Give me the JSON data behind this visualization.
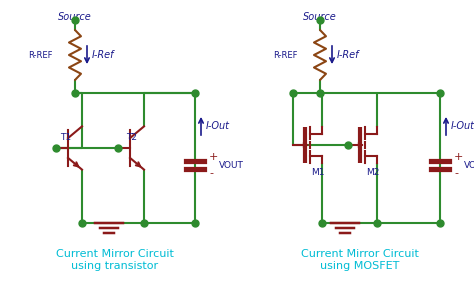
{
  "bg_color": "#ffffff",
  "wire_color": "#2e8b2e",
  "component_color": "#8b1a1a",
  "label_color": "#1a1a8b",
  "title_color": "#00bcd4",
  "node_color": "#2e8b2e",
  "resistor_color": "#8b4513",
  "title1": "Current Mirror Circuit\nusing transistor",
  "title2": "Current Mirror Circuit\nusing MOSFET",
  "source_label": "Source",
  "rref_label": "R-REF",
  "iref_label": "I-Ref",
  "iout_label": "I-Out",
  "vout_label": "VOUT",
  "t1_label": "T1",
  "t2_label": "T2",
  "m1_label": "M1",
  "m2_label": "M2",
  "plus_label": "+",
  "minus_label": "-"
}
